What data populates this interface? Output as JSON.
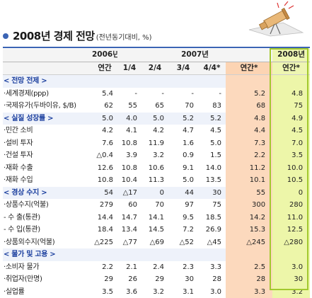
{
  "header": {
    "title": "2008년 경제 전망",
    "subtitle": "(전년동기대비, %)"
  },
  "table": {
    "year_headers": [
      "2006년",
      "2007년",
      "2008년"
    ],
    "sub_headers": [
      "연간",
      "1/4",
      "2/4",
      "3/4",
      "4/4*",
      "연간*",
      "연간*"
    ],
    "rows": [
      {
        "type": "section",
        "label": "< 전망 전제 >",
        "values": [
          "",
          "",
          "",
          "",
          "",
          "",
          ""
        ]
      },
      {
        "type": "data",
        "label": "·세계경제(ppp)",
        "values": [
          "5.4",
          "-",
          "-",
          "-",
          "-",
          "5.2",
          "4.8"
        ]
      },
      {
        "type": "data",
        "label": "·국제유가(두바이유, $/B)",
        "values": [
          "62",
          "55",
          "65",
          "70",
          "83",
          "68",
          "75"
        ]
      },
      {
        "type": "section",
        "label": "< 실질 성장률 >",
        "values": [
          "5.0",
          "4.0",
          "5.0",
          "5.2",
          "5.2",
          "4.8",
          "4.9"
        ]
      },
      {
        "type": "data",
        "label": "·민간 소비",
        "values": [
          "4.2",
          "4.1",
          "4.2",
          "4.7",
          "4.5",
          "4.4",
          "4.5"
        ]
      },
      {
        "type": "data",
        "label": "·설비 투자",
        "values": [
          "7.6",
          "10.8",
          "11.9",
          "1.6",
          "5.0",
          "7.3",
          "7.0"
        ]
      },
      {
        "type": "data",
        "label": "·건설 투자",
        "values": [
          "△0.4",
          "3.9",
          "3.2",
          "0.9",
          "1.5",
          "2.2",
          "3.5"
        ]
      },
      {
        "type": "data",
        "label": "·재화 수출",
        "values": [
          "12.6",
          "10.8",
          "10.6",
          "9.1",
          "14.0",
          "11.2",
          "10.0"
        ]
      },
      {
        "type": "data",
        "label": "·재화 수입",
        "values": [
          "10.8",
          "10.4",
          "11.3",
          "5.0",
          "13.5",
          "10.1",
          "10.5"
        ]
      },
      {
        "type": "section",
        "label": "< 경상 수지 >",
        "values": [
          "54",
          "△17",
          "0",
          "44",
          "30",
          "55",
          "0"
        ]
      },
      {
        "type": "data",
        "label": "·상품수지(억불)",
        "values": [
          "279",
          "60",
          "70",
          "97",
          "75",
          "300",
          "280"
        ]
      },
      {
        "type": "data",
        "label": "  - 수 출(통관)",
        "values": [
          "14.4",
          "14.7",
          "14.1",
          "9.5",
          "18.5",
          "14.2",
          "11.0"
        ]
      },
      {
        "type": "data",
        "label": "  - 수 입(통관)",
        "values": [
          "18.4",
          "13.4",
          "14.5",
          "7.2",
          "26.9",
          "15.3",
          "12.5"
        ]
      },
      {
        "type": "data",
        "label": "·상품외수지(억불)",
        "values": [
          "△225",
          "△77",
          "△69",
          "△52",
          "△45",
          "△245",
          "△280"
        ]
      },
      {
        "type": "section",
        "label": "< 물가 및 고용 >",
        "values": [
          "",
          "",
          "",
          "",
          "",
          "",
          ""
        ]
      },
      {
        "type": "data",
        "label": "·소비자 물가",
        "values": [
          "2.2",
          "2.1",
          "2.4",
          "2.3",
          "3.3",
          "2.5",
          "3.0"
        ]
      },
      {
        "type": "data",
        "label": "·취업자(만명)",
        "values": [
          "29",
          "26",
          "29",
          "30",
          "28",
          "28",
          "30"
        ]
      },
      {
        "type": "data",
        "label": "·실업률",
        "values": [
          "3.5",
          "3.6",
          "3.2",
          "3.1",
          "3.0",
          "3.3",
          "3.2"
        ]
      }
    ]
  },
  "colors": {
    "peach": "#fcd9bd",
    "lime": "#edf6a9",
    "lime_border": "#a3c92f",
    "accent": "#3b64b4"
  },
  "icons": [
    "telescope-logo"
  ]
}
